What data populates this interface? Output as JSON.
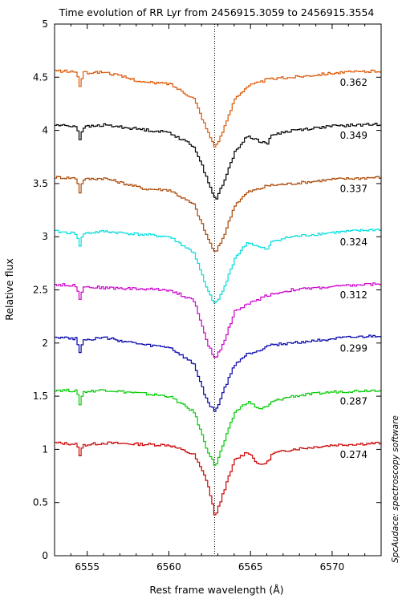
{
  "chart_data": {
    "type": "line",
    "title": "Time evolution of RR Lyr from 2456915.3059 to 2456915.3554",
    "xlabel": "Rest frame wavelength (Å)",
    "ylabel": "Relative flux",
    "credit": "SpcAudace: spectroscopy software",
    "xlim": [
      6553,
      6573
    ],
    "ylim": [
      0,
      5
    ],
    "xticks": [
      6555,
      6560,
      6565,
      6570
    ],
    "yticks": [
      0,
      0.5,
      1,
      1.5,
      2,
      2.5,
      3,
      3.5,
      4,
      4.5,
      5
    ],
    "reference_line_x": 6562.8,
    "grid": false,
    "legend": "none",
    "series": [
      {
        "label": "0.274",
        "offset": 0.0,
        "color": "#cc0000",
        "min": 0.36,
        "x": [
          6553,
          6554.3,
          6554.5,
          6554.7,
          6556,
          6560,
          6561.5,
          6562.3,
          6562.8,
          6563.3,
          6564,
          6564.8,
          6565.5,
          6566,
          6566.3,
          6567.5,
          6570,
          6573
        ],
        "y": [
          1.06,
          1.05,
          0.95,
          1.04,
          1.06,
          1.04,
          0.95,
          0.7,
          0.36,
          0.6,
          0.9,
          0.98,
          0.85,
          0.88,
          0.96,
          1.0,
          1.04,
          1.06
        ]
      },
      {
        "label": "0.287",
        "offset": 0.5,
        "color": "#00cc00",
        "min": 0.84,
        "x": [
          6553,
          6554.3,
          6554.5,
          6554.7,
          6556,
          6560,
          6561.5,
          6562.3,
          6562.8,
          6563.3,
          6564,
          6564.8,
          6565.5,
          6566,
          6566.3,
          6567.5,
          6570,
          6573
        ],
        "y": [
          1.56,
          1.55,
          1.43,
          1.54,
          1.56,
          1.5,
          1.35,
          1.0,
          0.84,
          1.05,
          1.35,
          1.45,
          1.38,
          1.4,
          1.45,
          1.5,
          1.54,
          1.56
        ]
      },
      {
        "label": "0.299",
        "offset": 1.0,
        "color": "#0000aa",
        "min": 1.35,
        "x": [
          6553,
          6554.3,
          6554.5,
          6554.7,
          6556,
          6558.5,
          6560,
          6561.5,
          6562.3,
          6562.8,
          6563.3,
          6564,
          6564.8,
          6565.5,
          6566,
          6567.5,
          6570,
          6573
        ],
        "y": [
          2.06,
          2.04,
          1.92,
          2.03,
          2.05,
          1.98,
          1.96,
          1.8,
          1.45,
          1.35,
          1.55,
          1.8,
          1.9,
          1.93,
          1.98,
          2.0,
          2.04,
          2.07
        ]
      },
      {
        "label": "0.312",
        "offset": 1.5,
        "color": "#cc00cc",
        "min": 1.85,
        "x": [
          6553,
          6554.3,
          6554.5,
          6554.7,
          6556,
          6560,
          6561.5,
          6562.3,
          6562.8,
          6563.3,
          6564,
          6565,
          6566,
          6567.5,
          6570,
          6573
        ],
        "y": [
          2.55,
          2.54,
          2.42,
          2.53,
          2.52,
          2.5,
          2.4,
          2.0,
          1.85,
          2.0,
          2.3,
          2.38,
          2.45,
          2.5,
          2.53,
          2.56
        ]
      },
      {
        "label": "0.324",
        "offset": 2.0,
        "color": "#00dddd",
        "min": 2.36,
        "x": [
          6553,
          6554.3,
          6554.5,
          6554.7,
          6556,
          6560,
          6561.5,
          6562.3,
          6562.8,
          6563.3,
          6564,
          6564.8,
          6565.5,
          6566,
          6566.3,
          6567.5,
          6570,
          6573
        ],
        "y": [
          3.05,
          3.03,
          2.92,
          3.03,
          3.05,
          3.0,
          2.85,
          2.5,
          2.36,
          2.5,
          2.8,
          2.95,
          2.9,
          2.88,
          2.96,
          3.0,
          3.04,
          3.07
        ]
      },
      {
        "label": "0.337",
        "offset": 2.5,
        "color": "#aa4400",
        "min": 2.84,
        "x": [
          6553,
          6554.3,
          6554.5,
          6554.7,
          6556,
          6558.5,
          6560,
          6561.5,
          6562.3,
          6562.8,
          6563.3,
          6564,
          6564.8,
          6565.5,
          6566,
          6567.5,
          6570,
          6573
        ],
        "y": [
          3.56,
          3.55,
          3.42,
          3.54,
          3.55,
          3.45,
          3.44,
          3.3,
          3.0,
          2.84,
          3.0,
          3.3,
          3.42,
          3.45,
          3.48,
          3.5,
          3.54,
          3.56
        ]
      },
      {
        "label": "0.349",
        "offset": 3.0,
        "color": "#000000",
        "min": 3.34,
        "x": [
          6553,
          6554.3,
          6554.5,
          6554.7,
          6556,
          6560,
          6561.5,
          6562.3,
          6562.8,
          6563.3,
          6564,
          6564.8,
          6565.5,
          6566,
          6566.3,
          6567.5,
          6570,
          6573
        ],
        "y": [
          4.05,
          4.04,
          3.92,
          4.03,
          4.05,
          3.98,
          3.85,
          3.55,
          3.34,
          3.5,
          3.8,
          3.95,
          3.9,
          3.88,
          3.96,
          4.0,
          4.04,
          4.06
        ]
      },
      {
        "label": "0.362",
        "offset": 3.5,
        "color": "#dd5500",
        "min": 3.84,
        "x": [
          6553,
          6554.3,
          6554.5,
          6554.7,
          6556,
          6558.5,
          6560,
          6561.5,
          6562.3,
          6562.8,
          6563.3,
          6564,
          6564.8,
          6565.5,
          6566,
          6567.5,
          6570,
          6573
        ],
        "y": [
          4.56,
          4.55,
          4.42,
          4.54,
          4.55,
          4.45,
          4.44,
          4.3,
          4.0,
          3.84,
          4.0,
          4.3,
          4.42,
          4.45,
          4.48,
          4.5,
          4.54,
          4.56
        ]
      }
    ]
  }
}
